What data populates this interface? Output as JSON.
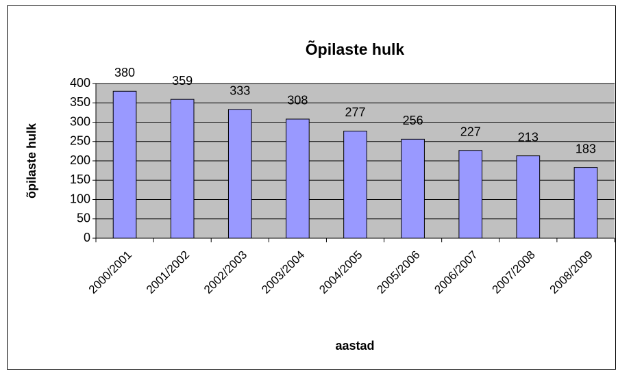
{
  "chart_data": {
    "type": "bar",
    "title": "Õpilaste hulk",
    "x_label": "aastad",
    "y_label": "õpilaste hulk",
    "categories": [
      "2000/2001",
      "2001/2002",
      "2002/2003",
      "2003/2004",
      "2004/2005",
      "2005/2006",
      "2006/2007",
      "2007/2008",
      "2008/2009"
    ],
    "values": [
      380,
      359,
      333,
      308,
      277,
      256,
      227,
      213,
      183
    ],
    "color": "#9999ff",
    "ylim": [
      0,
      400
    ],
    "yticks": [
      0,
      50,
      100,
      150,
      200,
      250,
      300,
      350,
      400
    ],
    "grid": true
  }
}
